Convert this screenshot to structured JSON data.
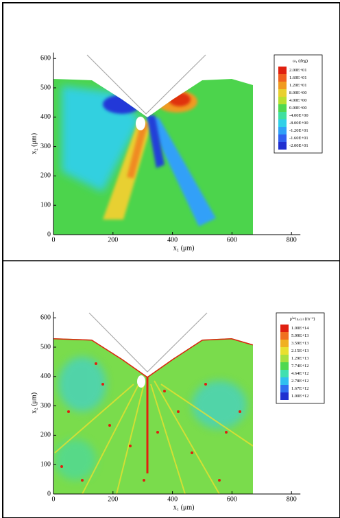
{
  "chart_data": [
    {
      "type": "contour",
      "xlabel": "x₁ (μm)",
      "ylabel": "x₂ (μm)",
      "xlim": [
        0,
        830
      ],
      "ylim": [
        0,
        620
      ],
      "xticks": [
        0,
        200,
        400,
        600,
        800
      ],
      "yticks": [
        0,
        100,
        200,
        300,
        400,
        500,
        600
      ],
      "legend": {
        "title": "ω₁ (deg)",
        "position": "right",
        "levels": [
          {
            "value": 20,
            "label": "2.00E+01"
          },
          {
            "value": 16,
            "label": "1.60E+01"
          },
          {
            "value": 12,
            "label": "1.20E+01"
          },
          {
            "value": 8,
            "label": "8.00E+00"
          },
          {
            "value": 4,
            "label": "4.00E+00"
          },
          {
            "value": 0,
            "label": "0.00E+00"
          },
          {
            "value": -4,
            "label": "-4.00E+00"
          },
          {
            "value": -8,
            "label": "-8.00E+00"
          },
          {
            "value": -12,
            "label": "-1.20E+01"
          },
          {
            "value": -16,
            "label": "-1.60E+01"
          },
          {
            "value": -20,
            "label": "-2.00E+01"
          }
        ],
        "colors": [
          "#e02010",
          "#f06020",
          "#f09a20",
          "#e8d030",
          "#b8e030",
          "#50d850",
          "#40e0a0",
          "#30d0e8",
          "#30a0f8",
          "#3060f0",
          "#2030d0"
        ]
      }
    },
    {
      "type": "contour",
      "xlabel": "x₁ (μm)",
      "ylabel": "x₂ (μm)",
      "xlim": [
        0,
        830
      ],
      "ylim": [
        0,
        620
      ],
      "xticks": [
        0,
        200,
        400,
        600,
        800
      ],
      "yticks": [
        0,
        100,
        200,
        300,
        400,
        500,
        600
      ],
      "legend": {
        "title": "ρⁱⁿᵈ₍ₚₐ₍ᵢ₎₎ (m⁻²)",
        "position": "right",
        "levels": [
          {
            "value": 100000000000000.0,
            "label": "1.00E+14"
          },
          {
            "value": 59900000000000.0,
            "label": "5.99E+13"
          },
          {
            "value": 35900000000000.0,
            "label": "3.59E+13"
          },
          {
            "value": 21500000000000.0,
            "label": "2.15E+13"
          },
          {
            "value": 12900000000000.0,
            "label": "1.29E+13"
          },
          {
            "value": 7740000000000.0,
            "label": "7.74E+12"
          },
          {
            "value": 4640000000000.0,
            "label": "4.64E+12"
          },
          {
            "value": 2780000000000.0,
            "label": "2.78E+12"
          },
          {
            "value": 1670000000000.0,
            "label": "1.67E+12"
          },
          {
            "value": 1000000000000.0,
            "label": "1.00E+12"
          }
        ],
        "colors": [
          "#e02010",
          "#f07020",
          "#f0b020",
          "#e8e030",
          "#a8e040",
          "#50d850",
          "#40e0b0",
          "#30c0f0",
          "#3070f0",
          "#2030d0"
        ]
      }
    }
  ]
}
